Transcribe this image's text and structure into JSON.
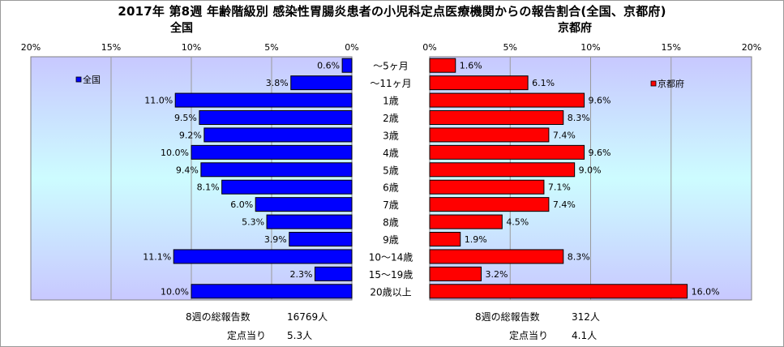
{
  "title": "2017年 第8週 年齢階級別 感染性胃腸炎患者の小児科定点医療機関からの報告割合(全国、京都府)",
  "chart_data": {
    "type": "bar",
    "categories": [
      "～5ヶ月",
      "～11ヶ月",
      "1歳",
      "2歳",
      "3歳",
      "4歳",
      "5歳",
      "6歳",
      "7歳",
      "8歳",
      "9歳",
      "10～14歳",
      "15～19歳",
      "20歳以上"
    ],
    "xlim": [
      0,
      20
    ],
    "ticks": [
      "20%",
      "15%",
      "10%",
      "5%",
      "0%"
    ],
    "ticks_right": [
      "0%",
      "5%",
      "10%",
      "15%",
      "20%"
    ],
    "series": [
      {
        "name": "全国",
        "panel_title": "全国",
        "color": "#0000FF",
        "values": [
          0.6,
          3.8,
          11.0,
          9.5,
          9.2,
          10.0,
          9.4,
          8.1,
          6.0,
          5.3,
          3.9,
          11.1,
          2.3,
          10.0
        ],
        "labels": [
          "0.6%",
          "3.8%",
          "11.0%",
          "9.5%",
          "9.2%",
          "10.0%",
          "9.4%",
          "8.1%",
          "6.0%",
          "5.3%",
          "3.9%",
          "11.1%",
          "2.3%",
          "10.0%"
        ]
      },
      {
        "name": "京都府",
        "panel_title": "京都府",
        "color": "#FF0000",
        "values": [
          1.6,
          6.1,
          9.6,
          8.3,
          7.4,
          9.6,
          9.0,
          7.1,
          7.4,
          4.5,
          1.9,
          8.3,
          3.2,
          16.0
        ],
        "labels": [
          "1.6%",
          "6.1%",
          "9.6%",
          "8.3%",
          "7.4%",
          "9.6%",
          "9.0%",
          "7.1%",
          "7.4%",
          "4.5%",
          "1.9%",
          "8.3%",
          "3.2%",
          "16.0%"
        ]
      }
    ]
  },
  "summary": {
    "national": {
      "total_label": "8週の総報告数",
      "total_value": "16769人",
      "per_label": "定点当り",
      "per_value": "5.3人"
    },
    "kyoto": {
      "total_label": "8週の総報告数",
      "total_value": "312人",
      "per_label": "定点当り",
      "per_value": "4.1人"
    }
  }
}
